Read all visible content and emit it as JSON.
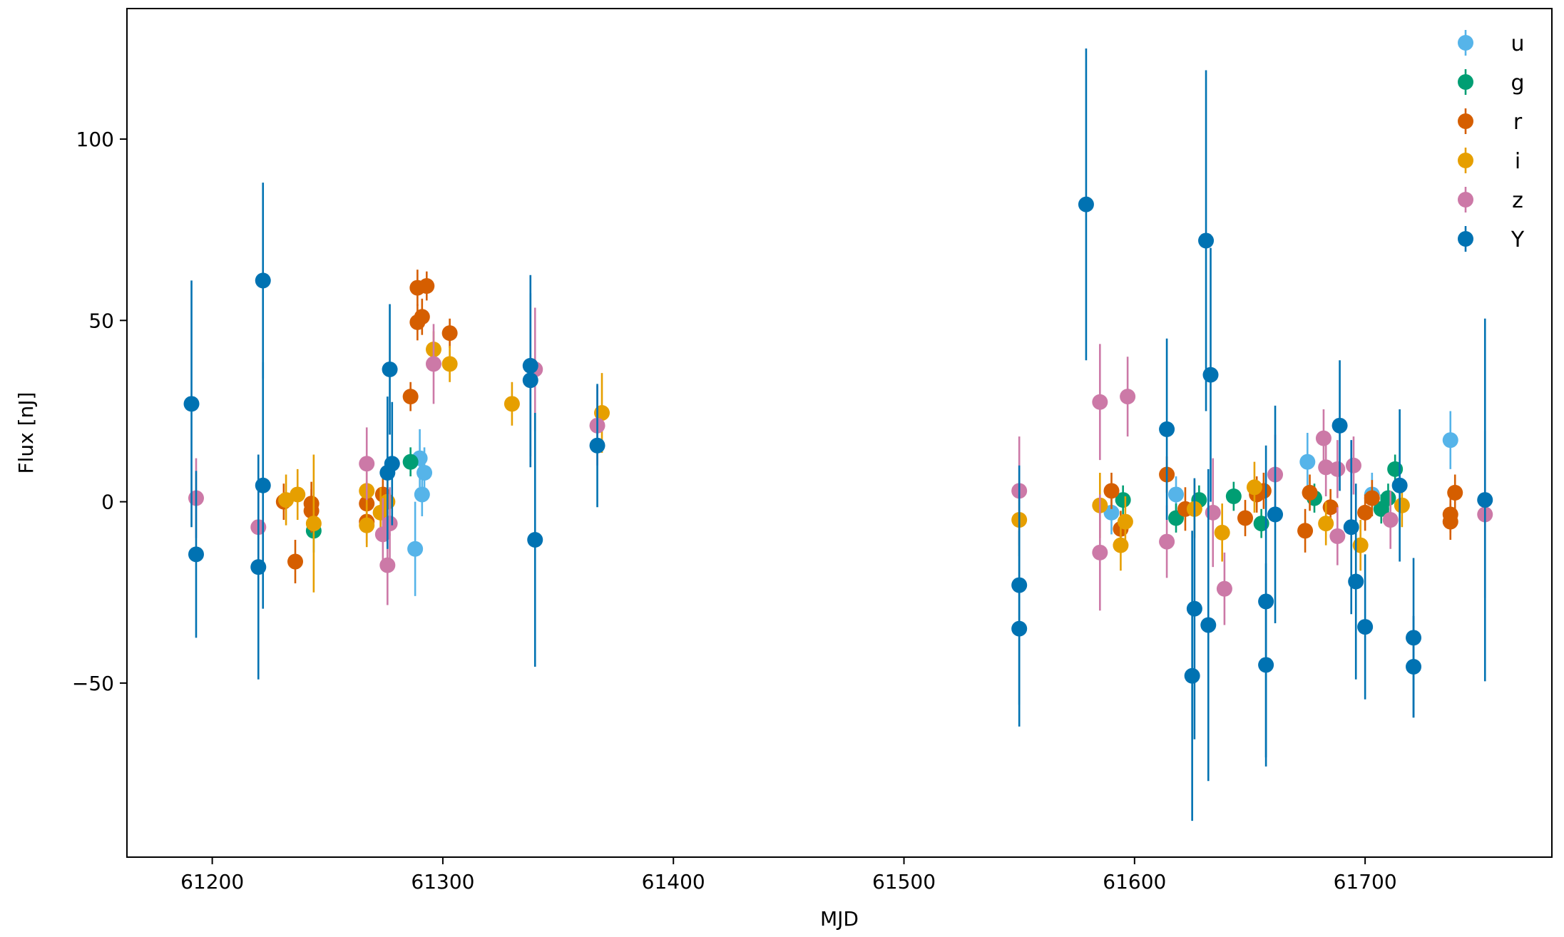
{
  "chart_data": {
    "type": "scatter",
    "title": "",
    "xlabel": "MJD",
    "ylabel": "Flux [nJ]",
    "xlim": [
      61163,
      61781
    ],
    "ylim": [
      -98,
      136
    ],
    "x_ticks": [
      61200,
      61300,
      61400,
      61500,
      61600,
      61700
    ],
    "x_tick_labels": [
      "61200",
      "61300",
      "61400",
      "61500",
      "61600",
      "61700"
    ],
    "y_ticks": [
      -50,
      0,
      50,
      100
    ],
    "y_tick_labels": [
      "−50",
      "0",
      "50",
      "100"
    ],
    "grid": false,
    "legend_position": "top-right",
    "series": [
      {
        "name": "u",
        "color": "#56B4E9",
        "points": [
          {
            "x": 61288,
            "y": -13,
            "err": 13
          },
          {
            "x": 61290,
            "y": 12,
            "err": 8
          },
          {
            "x": 61291,
            "y": 2,
            "err": 6
          },
          {
            "x": 61292,
            "y": 8,
            "err": 7
          },
          {
            "x": 61590,
            "y": -3,
            "err": 6
          },
          {
            "x": 61618,
            "y": 2,
            "err": 5
          },
          {
            "x": 61675,
            "y": 11,
            "err": 8
          },
          {
            "x": 61703,
            "y": 2,
            "err": 6
          },
          {
            "x": 61737,
            "y": 17,
            "err": 8
          }
        ]
      },
      {
        "name": "g",
        "color": "#009E73",
        "points": [
          {
            "x": 61244,
            "y": -8,
            "err": 6
          },
          {
            "x": 61286,
            "y": 11,
            "err": 4
          },
          {
            "x": 61595,
            "y": 0.5,
            "err": 4
          },
          {
            "x": 61618,
            "y": -4.5,
            "err": 4
          },
          {
            "x": 61628,
            "y": 0.5,
            "err": 4
          },
          {
            "x": 61643,
            "y": 1.5,
            "err": 4
          },
          {
            "x": 61655,
            "y": -6,
            "err": 4
          },
          {
            "x": 61678,
            "y": 1,
            "err": 4
          },
          {
            "x": 61707,
            "y": -2,
            "err": 4
          },
          {
            "x": 61710,
            "y": 1,
            "err": 4
          },
          {
            "x": 61713,
            "y": 9,
            "err": 4
          }
        ]
      },
      {
        "name": "r",
        "color": "#D55E00",
        "points": [
          {
            "x": 61231,
            "y": 0,
            "err": 5
          },
          {
            "x": 61236,
            "y": -16.5,
            "err": 6
          },
          {
            "x": 61243,
            "y": -0.5,
            "err": 6
          },
          {
            "x": 61243,
            "y": -2.5,
            "err": 6
          },
          {
            "x": 61267,
            "y": -5.5,
            "err": 6
          },
          {
            "x": 61267,
            "y": -0.5,
            "err": 6
          },
          {
            "x": 61274,
            "y": 2,
            "err": 6
          },
          {
            "x": 61286,
            "y": 29,
            "err": 4
          },
          {
            "x": 61289,
            "y": 59,
            "err": 5
          },
          {
            "x": 61289,
            "y": 49.5,
            "err": 5
          },
          {
            "x": 61291,
            "y": 51,
            "err": 5
          },
          {
            "x": 61293,
            "y": 59.5,
            "err": 4
          },
          {
            "x": 61303,
            "y": 46.5,
            "err": 4
          },
          {
            "x": 61590,
            "y": 3,
            "err": 5
          },
          {
            "x": 61594,
            "y": -7.5,
            "err": 5
          },
          {
            "x": 61614,
            "y": 7.5,
            "err": 5
          },
          {
            "x": 61622,
            "y": -2,
            "err": 6
          },
          {
            "x": 61648,
            "y": -4.5,
            "err": 5
          },
          {
            "x": 61653,
            "y": 2,
            "err": 5
          },
          {
            "x": 61656,
            "y": 3,
            "err": 5
          },
          {
            "x": 61674,
            "y": -8,
            "err": 6
          },
          {
            "x": 61676,
            "y": 2.5,
            "err": 5
          },
          {
            "x": 61685,
            "y": -1.5,
            "err": 5
          },
          {
            "x": 61700,
            "y": -3,
            "err": 5
          },
          {
            "x": 61703,
            "y": 1,
            "err": 5
          },
          {
            "x": 61737,
            "y": -5.5,
            "err": 5
          },
          {
            "x": 61737,
            "y": -3.5,
            "err": 5
          },
          {
            "x": 61739,
            "y": 2.5,
            "err": 5
          }
        ]
      },
      {
        "name": "i",
        "color": "#E69F00",
        "points": [
          {
            "x": 61232,
            "y": 0.5,
            "err": 7
          },
          {
            "x": 61237,
            "y": 2,
            "err": 7
          },
          {
            "x": 61244,
            "y": -6,
            "err": 19
          },
          {
            "x": 61267,
            "y": -6.5,
            "err": 6
          },
          {
            "x": 61267,
            "y": 3,
            "err": 6
          },
          {
            "x": 61273,
            "y": -3,
            "err": 7
          },
          {
            "x": 61276,
            "y": 0,
            "err": 6
          },
          {
            "x": 61296,
            "y": 42,
            "err": 5
          },
          {
            "x": 61303,
            "y": 38,
            "err": 5
          },
          {
            "x": 61330,
            "y": 27,
            "err": 6
          },
          {
            "x": 61369,
            "y": 24.5,
            "err": 11
          },
          {
            "x": 61550,
            "y": -5,
            "err": 10
          },
          {
            "x": 61585,
            "y": -1,
            "err": 9
          },
          {
            "x": 61594,
            "y": -12,
            "err": 7
          },
          {
            "x": 61596,
            "y": -5.5,
            "err": 7
          },
          {
            "x": 61626,
            "y": -2,
            "err": 8
          },
          {
            "x": 61638,
            "y": -8.5,
            "err": 8
          },
          {
            "x": 61652,
            "y": 4,
            "err": 7
          },
          {
            "x": 61683,
            "y": -6,
            "err": 6
          },
          {
            "x": 61698,
            "y": -12,
            "err": 7
          },
          {
            "x": 61716,
            "y": -1,
            "err": 6
          }
        ]
      },
      {
        "name": "z",
        "color": "#CC79A7",
        "points": [
          {
            "x": 61193,
            "y": 1,
            "err": 11
          },
          {
            "x": 61220,
            "y": -7,
            "err": 13
          },
          {
            "x": 61267,
            "y": 10.5,
            "err": 10
          },
          {
            "x": 61274,
            "y": -9,
            "err": 10
          },
          {
            "x": 61276,
            "y": -17.5,
            "err": 11
          },
          {
            "x": 61277,
            "y": -6,
            "err": 10
          },
          {
            "x": 61296,
            "y": 38,
            "err": 11
          },
          {
            "x": 61340,
            "y": 36.5,
            "err": 17
          },
          {
            "x": 61367,
            "y": 21,
            "err": 11
          },
          {
            "x": 61550,
            "y": 3,
            "err": 15
          },
          {
            "x": 61585,
            "y": 27.5,
            "err": 16
          },
          {
            "x": 61585,
            "y": -14,
            "err": 16
          },
          {
            "x": 61597,
            "y": 29,
            "err": 11
          },
          {
            "x": 61614,
            "y": -11,
            "err": 10
          },
          {
            "x": 61634,
            "y": -3,
            "err": 15
          },
          {
            "x": 61639,
            "y": -24,
            "err": 10
          },
          {
            "x": 61661,
            "y": 7.5,
            "err": 11
          },
          {
            "x": 61682,
            "y": 17.5,
            "err": 8
          },
          {
            "x": 61683,
            "y": 9.5,
            "err": 8
          },
          {
            "x": 61688,
            "y": 9,
            "err": 8
          },
          {
            "x": 61688,
            "y": -9.5,
            "err": 8
          },
          {
            "x": 61695,
            "y": 10,
            "err": 8
          },
          {
            "x": 61711,
            "y": -5,
            "err": 8
          },
          {
            "x": 61752,
            "y": -3.5,
            "err": 23
          }
        ]
      },
      {
        "name": "Y",
        "color": "#0072B2",
        "points": [
          {
            "x": 61191,
            "y": 27,
            "err": 34
          },
          {
            "x": 61193,
            "y": -14.5,
            "err": 23
          },
          {
            "x": 61220,
            "y": -18,
            "err": 31
          },
          {
            "x": 61222,
            "y": 61,
            "err": 27
          },
          {
            "x": 61222,
            "y": 4.5,
            "err": 34
          },
          {
            "x": 61276,
            "y": 8,
            "err": 21
          },
          {
            "x": 61277,
            "y": 36.5,
            "err": 18
          },
          {
            "x": 61278,
            "y": 10.5,
            "err": 17
          },
          {
            "x": 61338,
            "y": 37.5,
            "err": 25
          },
          {
            "x": 61338,
            "y": 33.5,
            "err": 24
          },
          {
            "x": 61340,
            "y": -10.5,
            "err": 35
          },
          {
            "x": 61367,
            "y": 15.5,
            "err": 17
          },
          {
            "x": 61550,
            "y": -23,
            "err": 33
          },
          {
            "x": 61550,
            "y": -35,
            "err": 27
          },
          {
            "x": 61579,
            "y": 82,
            "err": 43
          },
          {
            "x": 61614,
            "y": 20,
            "err": 25
          },
          {
            "x": 61625,
            "y": -48,
            "err": 40
          },
          {
            "x": 61626,
            "y": -29.5,
            "err": 36
          },
          {
            "x": 61631,
            "y": 72,
            "err": 47
          },
          {
            "x": 61632,
            "y": -34,
            "err": 43
          },
          {
            "x": 61633,
            "y": 35,
            "err": 35
          },
          {
            "x": 61657,
            "y": -27.5,
            "err": 43
          },
          {
            "x": 61657,
            "y": -45,
            "err": 28
          },
          {
            "x": 61661,
            "y": -3.5,
            "err": 30
          },
          {
            "x": 61689,
            "y": 21,
            "err": 18
          },
          {
            "x": 61694,
            "y": -7,
            "err": 24
          },
          {
            "x": 61696,
            "y": -22,
            "err": 27
          },
          {
            "x": 61700,
            "y": -34.5,
            "err": 20
          },
          {
            "x": 61715,
            "y": 4.5,
            "err": 21
          },
          {
            "x": 61721,
            "y": -37.5,
            "err": 22
          },
          {
            "x": 61721,
            "y": -45.5,
            "err": 14
          },
          {
            "x": 61752,
            "y": 0.5,
            "err": 50
          }
        ]
      }
    ]
  }
}
